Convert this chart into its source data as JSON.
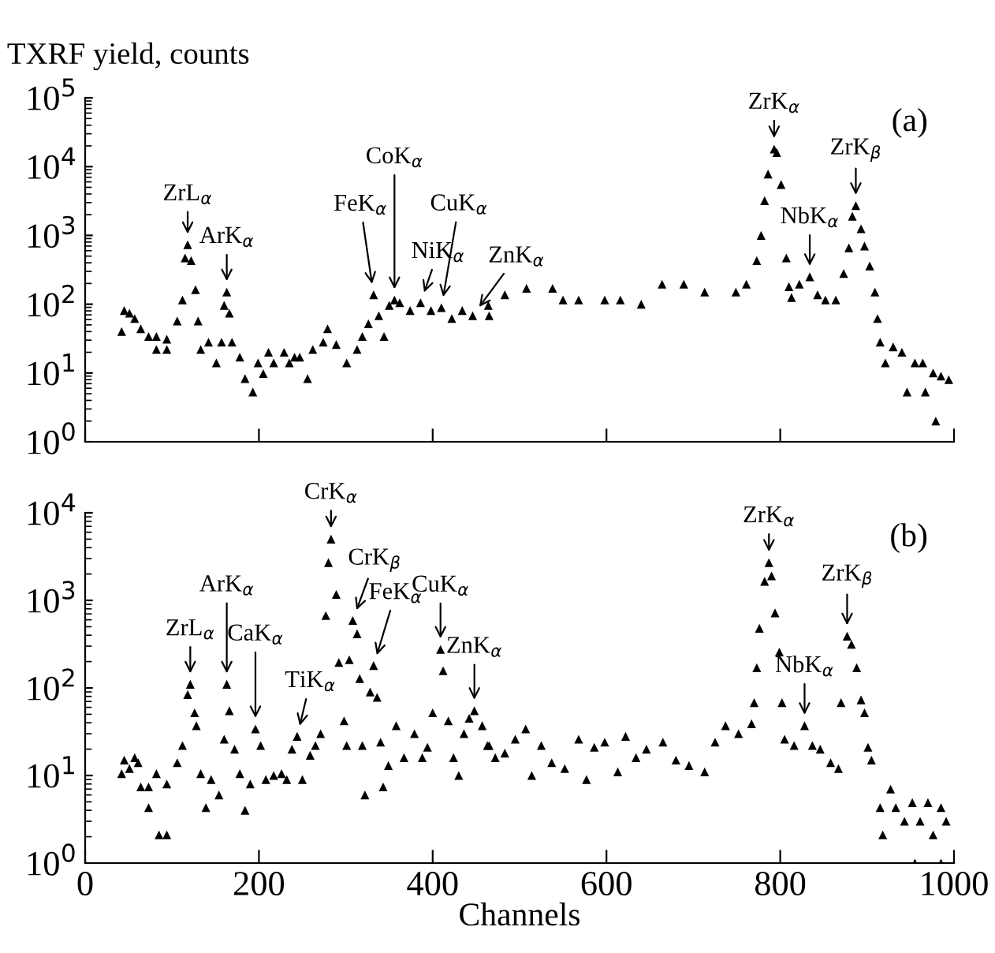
{
  "chart_data": [
    {
      "type": "scatter",
      "ylabel": "TXRF yield, counts",
      "log": "y",
      "marker": "triangle",
      "legend": false,
      "grid": false,
      "tick_labels": "y",
      "xlim": [
        0,
        1000
      ],
      "xticks": [
        {
          "value": 0,
          "label": null
        },
        {
          "value": 200,
          "label": null
        },
        {
          "value": 400,
          "label": null
        },
        {
          "value": 600,
          "label": null
        },
        {
          "value": 800,
          "label": null
        },
        {
          "value": 1000,
          "label": null
        }
      ],
      "ylim": [
        1,
        100000
      ],
      "yticks": [
        {
          "value": 1,
          "label": "10$^{0}$"
        },
        {
          "value": 10,
          "label": "10$^{1}$"
        },
        {
          "value": 100,
          "label": "10$^{2}$"
        },
        {
          "value": 1000,
          "label": "10$^{3}$"
        },
        {
          "value": 10000,
          "label": "10$^{4}$"
        },
        {
          "value": 100000,
          "label": "10$^{5}$"
        }
      ],
      "x": [
        42,
        45,
        51,
        57,
        64,
        73,
        82,
        82,
        94,
        94,
        106,
        112,
        115,
        118,
        122,
        127,
        130,
        133,
        142,
        151,
        157,
        160,
        163,
        166,
        169,
        178,
        184,
        193,
        199,
        205,
        211,
        217,
        229,
        235,
        241,
        247,
        256,
        262,
        274,
        279,
        289,
        301,
        313,
        319,
        326,
        332,
        338,
        344,
        350,
        356,
        362,
        374,
        386,
        398,
        410,
        422,
        434,
        446,
        464,
        465,
        483,
        508,
        538,
        550,
        568,
        598,
        616,
        640,
        664,
        689,
        713,
        749,
        761,
        773,
        778,
        782,
        786,
        793,
        796,
        801,
        807,
        810,
        813,
        822,
        834,
        843,
        852,
        864,
        873,
        879,
        883,
        887,
        893,
        897,
        903,
        909,
        912,
        915,
        921,
        930,
        940,
        946,
        955,
        964,
        967,
        976,
        979,
        985,
        994
      ],
      "series": [
        {
          "color": "#000000",
          "values": [
            40,
            81,
            74,
            62,
            44,
            34,
            34,
            22,
            22,
            31,
            57,
            115,
            470,
            730,
            430,
            163,
            57,
            22,
            28,
            14,
            28,
            96,
            150,
            74,
            28,
            17,
            8.3,
            5.3,
            14,
            9.8,
            20,
            14,
            20,
            14,
            17,
            17,
            8.3,
            22,
            28,
            44,
            26,
            14,
            22,
            34,
            52,
            137,
            68,
            34,
            96,
            115,
            105,
            81,
            105,
            81,
            89,
            62,
            81,
            68,
            96,
            68,
            137,
            170,
            170,
            115,
            115,
            115,
            115,
            100,
            195,
            195,
            150,
            150,
            195,
            430,
            1000,
            3200,
            7800,
            18000,
            16000,
            5500,
            470,
            180,
            125,
            195,
            250,
            137,
            115,
            115,
            280,
            660,
            1900,
            2700,
            1250,
            700,
            360,
            150,
            62,
            28,
            14,
            24,
            20,
            5.3,
            14,
            14,
            5.3,
            10,
            2,
            9,
            8
          ]
        }
      ],
      "annotations": [
        {
          "text": "ZrL$_{α}$",
          "x": 118,
          "y": 730
        },
        {
          "text": "ArK$_{α}$",
          "x": 163,
          "y": 150
        },
        {
          "text": "FeK$_{α}$",
          "x": 332,
          "y": 137
        },
        {
          "text": "CoK$_{α}$",
          "x": 356,
          "y": 115
        },
        {
          "text": "CuK$_{α}$",
          "x": 410,
          "y": 89
        },
        {
          "text": "NiK$_{α}$",
          "x": 386,
          "y": 105
        },
        {
          "text": "ZnK$_{α}$",
          "x": 446,
          "y": 68
        },
        {
          "text": "ZrK$_{α}$",
          "x": 793,
          "y": 18000
        },
        {
          "text": "NbK$_{α}$",
          "x": 834,
          "y": 250
        },
        {
          "text": "ZrK$_{β}$",
          "x": 887,
          "y": 2700
        },
        "(a)"
      ]
    },
    {
      "type": "scatter",
      "xlabel": "Channels",
      "log": "y",
      "marker": "triangle",
      "legend": false,
      "grid": false,
      "xlim": [
        0,
        1000
      ],
      "xticks": [
        0,
        200,
        400,
        600,
        800,
        1000
      ],
      "ylim": [
        1,
        10000
      ],
      "yticks": [
        {
          "value": 1,
          "label": "10$^{0}$"
        },
        {
          "value": 10,
          "label": "10$^{1}$"
        },
        {
          "value": 100,
          "label": "10$^{2}$"
        },
        {
          "value": 1000,
          "label": "10$^{3}$"
        },
        {
          "value": 10000,
          "label": "10$^{4}$"
        }
      ],
      "x": [
        42,
        45,
        51,
        57,
        61,
        64,
        73,
        73,
        82,
        85,
        94,
        94,
        106,
        112,
        118,
        121,
        126,
        128,
        133,
        139,
        145,
        154,
        160,
        163,
        166,
        172,
        178,
        184,
        190,
        196,
        202,
        208,
        217,
        226,
        232,
        238,
        244,
        250,
        259,
        265,
        271,
        277,
        280,
        283,
        289,
        292,
        298,
        301,
        304,
        308,
        313,
        316,
        319,
        322,
        328,
        332,
        336,
        340,
        343,
        349,
        358,
        367,
        379,
        388,
        394,
        400,
        409,
        412,
        418,
        424,
        430,
        436,
        442,
        448,
        457,
        463,
        465,
        472,
        483,
        495,
        507,
        514,
        525,
        537,
        552,
        568,
        577,
        586,
        598,
        613,
        622,
        634,
        646,
        665,
        680,
        695,
        713,
        725,
        737,
        752,
        767,
        770,
        773,
        776,
        782,
        787,
        790,
        794,
        799,
        802,
        805,
        816,
        828,
        837,
        846,
        858,
        867,
        870,
        877,
        882,
        888,
        893,
        897,
        901,
        905,
        915,
        918,
        927,
        933,
        943,
        952,
        955,
        961,
        970,
        976,
        985,
        985,
        991
      ],
      "series": [
        {
          "color": "#000000",
          "values": [
            10.5,
            15,
            12,
            16,
            14,
            7.4,
            7.4,
            4.3,
            10.5,
            2.1,
            2.1,
            8,
            14,
            22,
            84,
            110,
            52,
            37,
            10.5,
            4.3,
            9,
            6,
            26,
            110,
            55,
            20,
            10.5,
            4,
            8,
            34,
            22,
            9,
            10,
            10.5,
            9,
            20,
            28,
            9,
            17,
            22,
            30,
            670,
            2700,
            5000,
            1170,
            195,
            42,
            22,
            210,
            590,
            415,
            128,
            22,
            6,
            90,
            180,
            78,
            24,
            7.4,
            13,
            37,
            16,
            30,
            16,
            21,
            52,
            275,
            157,
            42,
            16,
            10,
            30,
            45,
            55,
            37,
            22,
            22,
            16,
            18,
            26,
            34,
            10,
            22,
            14,
            12,
            26,
            9,
            21,
            24,
            11,
            28,
            16,
            20,
            24,
            15,
            13,
            11,
            24,
            37,
            30,
            39,
            68,
            170,
            480,
            1650,
            2700,
            1900,
            720,
            257,
            68,
            26,
            22,
            37,
            22,
            20,
            14,
            12,
            68,
            390,
            315,
            170,
            73,
            52,
            21,
            15,
            4.3,
            2.1,
            7,
            4.3,
            3,
            4.9,
            1,
            3,
            4.9,
            2.1,
            4.3,
            1,
            3
          ]
        }
      ],
      "annotations": [
        {
          "text": "ZrL$_{α}$",
          "x": 121,
          "y": 110
        },
        {
          "text": "ArK$_{α}$",
          "x": 163,
          "y": 110
        },
        {
          "text": "CaK$_{α}$",
          "x": 196,
          "y": 34
        },
        {
          "text": "TiK$_{α}$",
          "x": 244,
          "y": 28
        },
        {
          "text": "CrK$_{α}$",
          "x": 283,
          "y": 5000
        },
        {
          "text": "CrK$_{β}$",
          "x": 308,
          "y": 590
        },
        {
          "text": "FeK$_{α}$",
          "x": 332,
          "y": 180
        },
        {
          "text": "CuK$_{α}$",
          "x": 409,
          "y": 275
        },
        {
          "text": "ZnK$_{α}$",
          "x": 448,
          "y": 55
        },
        {
          "text": "ZrK$_{α}$",
          "x": 787,
          "y": 2700
        },
        {
          "text": "NbK$_{α}$",
          "x": 828,
          "y": 37
        },
        {
          "text": "ZrK$_{β}$",
          "x": 877,
          "y": 390
        },
        "(b)"
      ]
    }
  ]
}
